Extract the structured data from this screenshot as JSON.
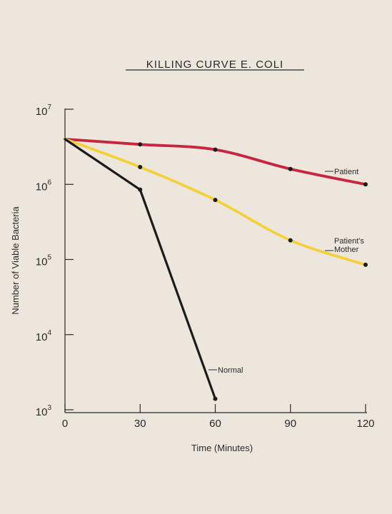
{
  "chart_data": {
    "type": "line",
    "title": "KILLING CURVE E. COLI",
    "xlabel": "Time (Minutes)",
    "ylabel": "Number of Viable Bacteria",
    "x_ticks": [
      0,
      30,
      60,
      90,
      120
    ],
    "y_scale": "log",
    "y_ticks": [
      {
        "base": "10",
        "exp": "3",
        "value": 1000
      },
      {
        "base": "10",
        "exp": "4",
        "value": 10000
      },
      {
        "base": "10",
        "exp": "5",
        "value": 100000
      },
      {
        "base": "10",
        "exp": "6",
        "value": 1000000
      },
      {
        "base": "10",
        "exp": "7",
        "value": 10000000
      }
    ],
    "xlim": [
      0,
      120
    ],
    "ylim": [
      1000,
      10000000
    ],
    "grid": false,
    "series": [
      {
        "name": "Patient",
        "label_lines": [
          "Patient"
        ],
        "color": "#c8263f",
        "points": [
          {
            "x": 0,
            "y": 4000000
          },
          {
            "x": 30,
            "y": 3400000
          },
          {
            "x": 60,
            "y": 2900000
          },
          {
            "x": 90,
            "y": 1600000
          },
          {
            "x": 120,
            "y": 1000000
          }
        ]
      },
      {
        "name": "Patient's Mother",
        "label_lines": [
          "Patient's",
          "Mother"
        ],
        "color": "#f2d13c",
        "points": [
          {
            "x": 0,
            "y": 4000000
          },
          {
            "x": 30,
            "y": 1700000
          },
          {
            "x": 60,
            "y": 620000
          },
          {
            "x": 90,
            "y": 180000
          },
          {
            "x": 120,
            "y": 85000
          }
        ]
      },
      {
        "name": "Normal",
        "label_lines": [
          "Normal"
        ],
        "color": "#1c1c1c",
        "points": [
          {
            "x": 0,
            "y": 4000000
          },
          {
            "x": 30,
            "y": 850000
          },
          {
            "x": 60,
            "y": 1400
          }
        ]
      }
    ]
  }
}
